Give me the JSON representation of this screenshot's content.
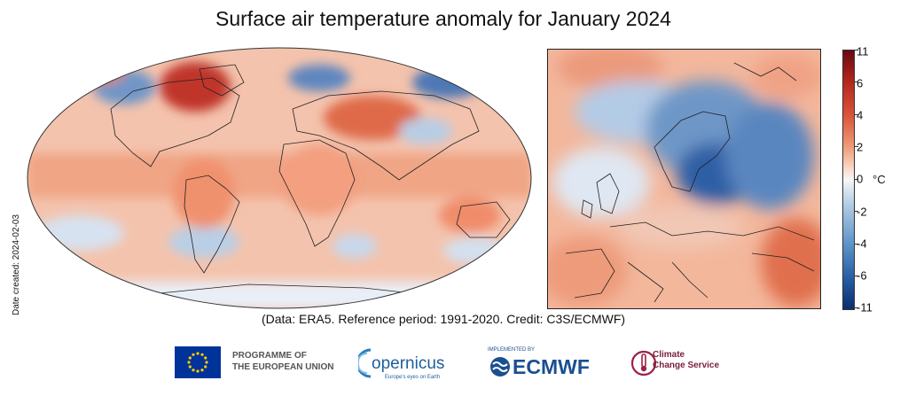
{
  "title": "Surface air temperature anomaly for January 2024",
  "date_created": "Date created:  2024-02-03",
  "credit": "(Data: ERA5.  Reference period: 1991-2020.  Credit: C3S/ECMWF)",
  "colorbar": {
    "unit": "°C",
    "ticks": [
      "11",
      "6",
      "4",
      "2",
      "0",
      "-2",
      "-4",
      "-6",
      "-11"
    ],
    "range": [
      -11,
      11
    ],
    "colors": {
      "max": "#6a0a12",
      "warm": "#d9543a",
      "neutral": "#f7f7f7",
      "cool": "#5d93c7",
      "min": "#0a2e6b"
    }
  },
  "logos": {
    "eu_line1": "PROGRAMME OF",
    "eu_line2": "THE EUROPEAN UNION",
    "copernicus": "opernicus",
    "copernicus_tagline": "Europe's eyes on Earth",
    "ecmwf_implemented": "IMPLEMENTED BY",
    "ecmwf": "ECMWF",
    "c3s_line1": "Climate",
    "c3s_line2": "Change Service"
  }
}
